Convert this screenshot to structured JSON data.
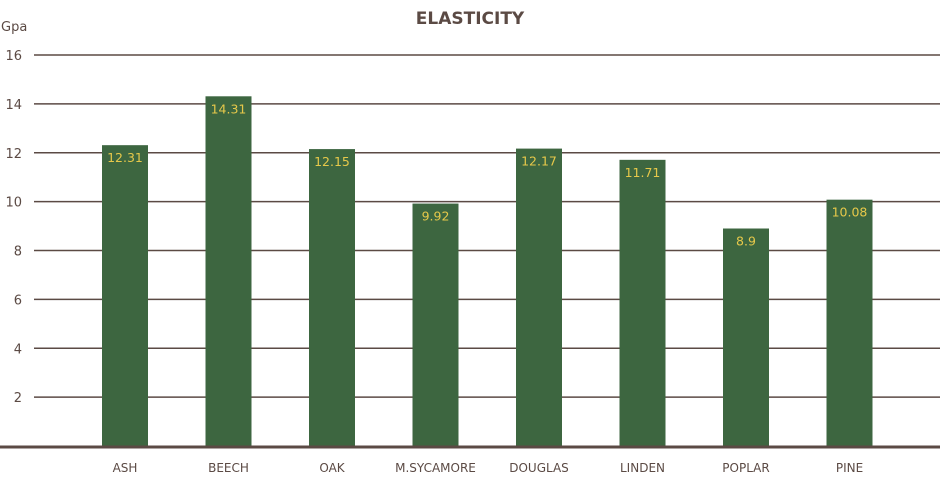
{
  "chart_data": {
    "type": "bar",
    "title": "ELASTICITY",
    "ylabel": "Gpa",
    "xlabel": "",
    "ylim": [
      0,
      16
    ],
    "yticks": [
      2,
      4,
      6,
      8,
      10,
      12,
      14,
      16
    ],
    "grid": true,
    "categories": [
      "ASH",
      "BEECH",
      "OAK",
      "M.SYCAMORE",
      "DOUGLAS",
      "LINDEN",
      "POPLAR",
      "PINE"
    ],
    "values": [
      12.31,
      14.31,
      12.15,
      9.92,
      12.17,
      11.71,
      8.9,
      10.08
    ],
    "value_labels": [
      "12.31",
      "14.31",
      "12.15",
      "9.92",
      "12.17",
      "11.71",
      "8.9",
      "10.08"
    ],
    "colors": {
      "bar": "#3d6640",
      "value_label": "#e6c84a",
      "text": "#5b4a44",
      "grid": "#5b4a44"
    }
  }
}
